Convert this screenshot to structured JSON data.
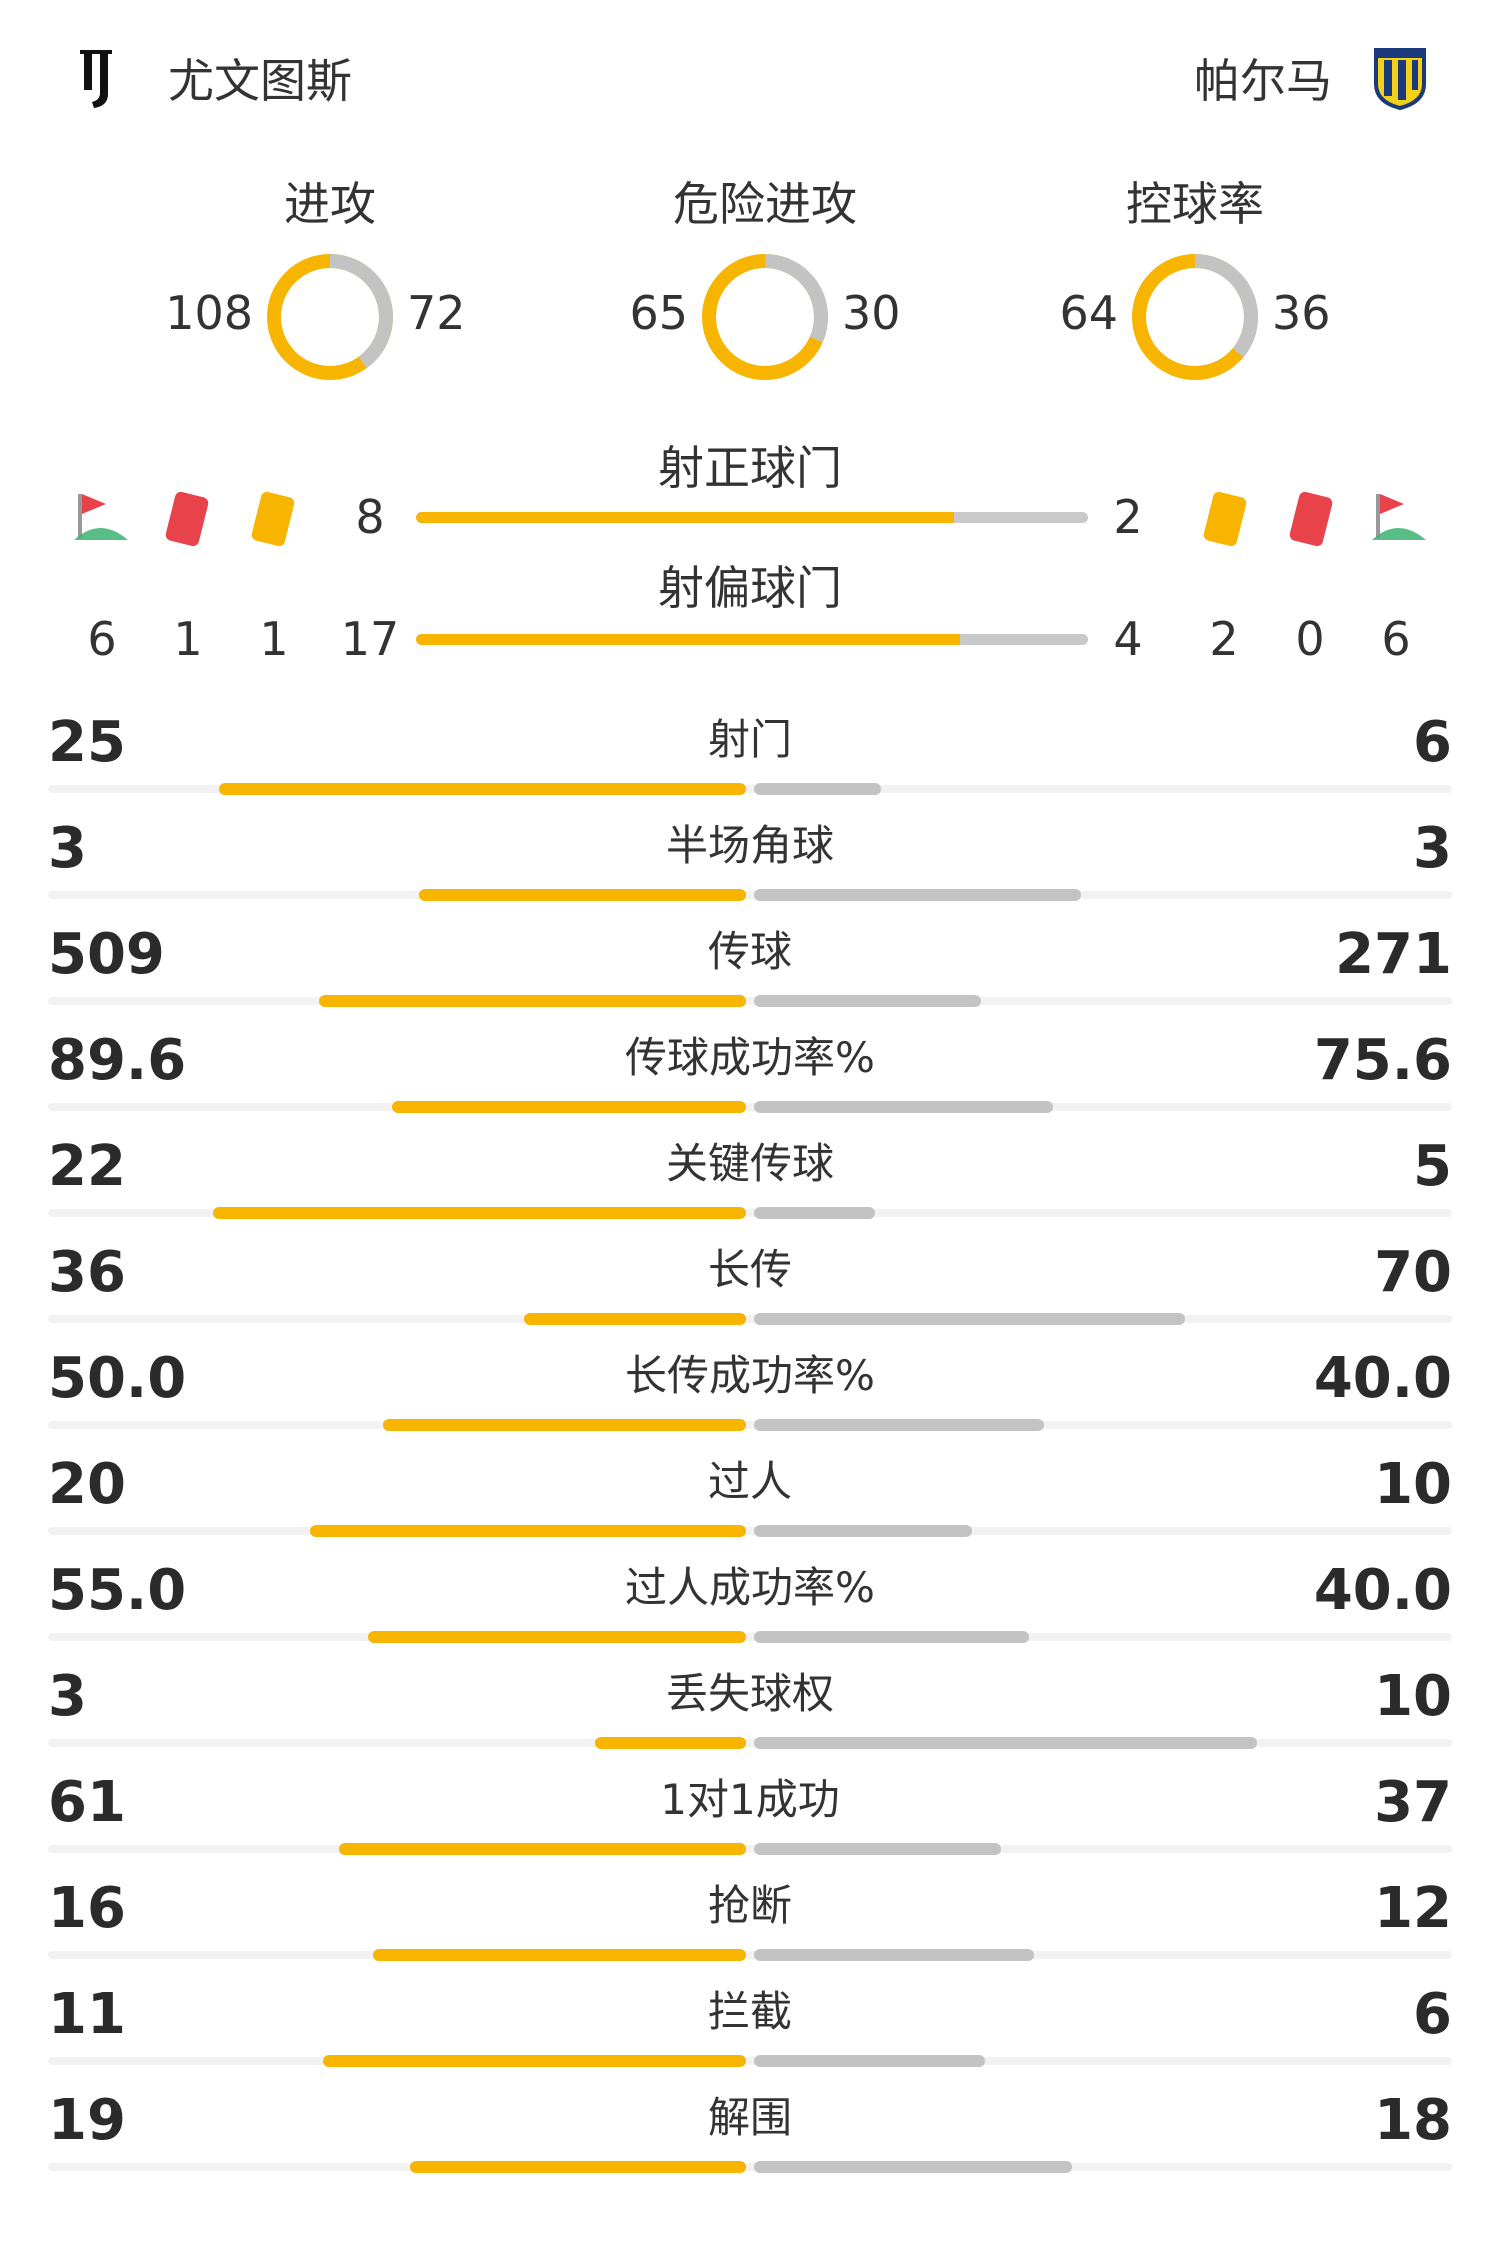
{
  "header": {
    "home_team": "尤文图斯",
    "away_team": "帕尔马",
    "home_logo_icon": "juventus-logo-icon",
    "away_logo_icon": "parma-shield-icon"
  },
  "colors": {
    "home": "#f7b500",
    "away": "#c3c3c3",
    "red_card": "#e8424b",
    "yellow_card": "#f7b500",
    "corner_green": "#3cb371"
  },
  "donuts": [
    {
      "title": "进攻",
      "home": "108",
      "away": "72",
      "home_value": 108,
      "away_value": 72
    },
    {
      "title": "危险进攻",
      "home": "65",
      "away": "30",
      "home_value": 65,
      "away_value": 30
    },
    {
      "title": "控球率",
      "home": "64",
      "away": "36",
      "home_value": 64,
      "away_value": 36
    }
  ],
  "shots": {
    "on_target": {
      "title": "射正球门",
      "home": "8",
      "away": "2",
      "home_fraction": 0.8
    },
    "off_target": {
      "title": "射偏球门",
      "home": "17",
      "away": "4",
      "home_fraction": 0.81
    }
  },
  "events": {
    "home": {
      "corners": "6",
      "red_cards": "1",
      "yellow_cards": "1"
    },
    "away": {
      "yellow_cards": "2",
      "red_cards": "0",
      "corners": "6"
    }
  },
  "stats": [
    {
      "label": "射门",
      "home": "25",
      "away": "6",
      "home_share": 0.807,
      "away_share": 0.194
    },
    {
      "label": "半场角球",
      "home": "3",
      "away": "3",
      "home_share": 0.5,
      "away_share": 0.5
    },
    {
      "label": "传球",
      "home": "509",
      "away": "271",
      "home_share": 0.653,
      "away_share": 0.347
    },
    {
      "label": "传球成功率%",
      "home": "89.6",
      "away": "75.6",
      "home_share": 0.542,
      "away_share": 0.458
    },
    {
      "label": "关键传球",
      "home": "22",
      "away": "5",
      "home_share": 0.815,
      "away_share": 0.185
    },
    {
      "label": "长传",
      "home": "36",
      "away": "70",
      "home_share": 0.34,
      "away_share": 0.66
    },
    {
      "label": "长传成功率%",
      "home": "50.0",
      "away": "40.0",
      "home_share": 0.556,
      "away_share": 0.444
    },
    {
      "label": "过人",
      "home": "20",
      "away": "10",
      "home_share": 0.667,
      "away_share": 0.333
    },
    {
      "label": "过人成功率%",
      "home": "55.0",
      "away": "40.0",
      "home_share": 0.579,
      "away_share": 0.421
    },
    {
      "label": "丢失球权",
      "home": "3",
      "away": "10",
      "home_share": 0.231,
      "away_share": 0.769
    },
    {
      "label": "1对1成功",
      "home": "61",
      "away": "37",
      "home_share": 0.622,
      "away_share": 0.378
    },
    {
      "label": "抢断",
      "home": "16",
      "away": "12",
      "home_share": 0.571,
      "away_share": 0.429
    },
    {
      "label": "拦截",
      "home": "11",
      "away": "6",
      "home_share": 0.647,
      "away_share": 0.353
    },
    {
      "label": "解围",
      "home": "19",
      "away": "18",
      "home_share": 0.514,
      "away_share": 0.486
    }
  ]
}
